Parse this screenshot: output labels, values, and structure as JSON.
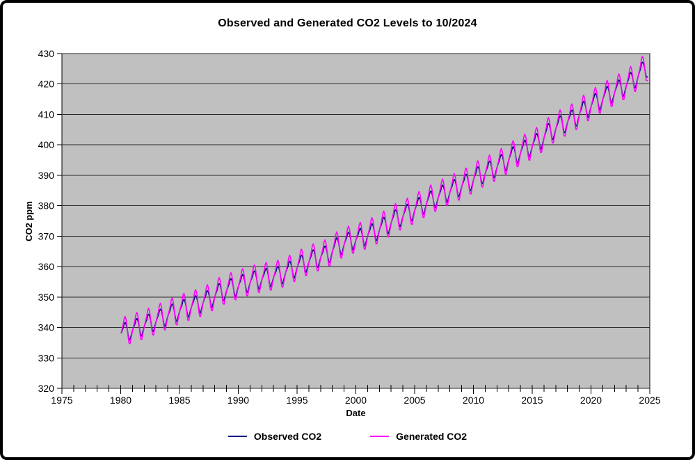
{
  "chart_data": {
    "type": "line",
    "title": "Observed and Generated CO2 Levels to 10/2024",
    "xlabel": "Date",
    "ylabel": "CO2 ppm",
    "xlim": [
      1975,
      2025
    ],
    "ylim": [
      320,
      430
    ],
    "x_major_ticks": [
      1975,
      1980,
      1985,
      1990,
      1995,
      2000,
      2005,
      2010,
      2015,
      2020,
      2025
    ],
    "x_minor_tick_step_years": 1,
    "y_ticks": [
      320,
      330,
      340,
      350,
      360,
      370,
      380,
      390,
      400,
      410,
      420,
      430
    ],
    "grid": "horizontal",
    "plot_background": "#c0c0c0",
    "gridline_color": "#2a2a2a",
    "axis_color": "#000000",
    "legend_position": "bottom-center",
    "sampling": "monthly",
    "data_start": "1980-01",
    "data_end": "2024-10",
    "series": [
      {
        "name": "Observed CO2",
        "color": "#000080",
        "years": [
          1980,
          1981,
          1982,
          1983,
          1984,
          1985,
          1986,
          1987,
          1988,
          1989,
          1990,
          1991,
          1992,
          1993,
          1994,
          1995,
          1996,
          1997,
          1998,
          1999,
          2000,
          2001,
          2002,
          2003,
          2004,
          2005,
          2006,
          2007,
          2008,
          2009,
          2010,
          2011,
          2012,
          2013,
          2014,
          2015,
          2016,
          2017,
          2018,
          2019,
          2020,
          2021,
          2022,
          2023,
          2024
        ],
        "annual_means": [
          338.8,
          340.1,
          341.5,
          343.2,
          344.9,
          346.4,
          347.6,
          349.3,
          351.7,
          353.2,
          354.5,
          355.7,
          356.5,
          357.2,
          359.0,
          361.0,
          362.7,
          363.9,
          366.8,
          368.5,
          369.7,
          371.3,
          373.5,
          376.0,
          377.7,
          380.0,
          382.1,
          384.0,
          385.8,
          387.6,
          390.1,
          391.9,
          394.1,
          396.7,
          398.8,
          401.0,
          404.4,
          406.8,
          408.7,
          411.7,
          414.2,
          416.5,
          418.6,
          421.1,
          424.6
        ],
        "monthly_seasonal_offsets": [
          0.0,
          0.7,
          1.4,
          2.6,
          3.0,
          2.4,
          0.8,
          -1.3,
          -3.1,
          -3.3,
          -2.1,
          -1.0
        ]
      },
      {
        "name": "Generated CO2",
        "color": "#ff00ff",
        "years": [
          1980,
          1981,
          1982,
          1983,
          1984,
          1985,
          1986,
          1987,
          1988,
          1989,
          1990,
          1991,
          1992,
          1993,
          1994,
          1995,
          1996,
          1997,
          1998,
          1999,
          2000,
          2001,
          2002,
          2003,
          2004,
          2005,
          2006,
          2007,
          2008,
          2009,
          2010,
          2011,
          2012,
          2013,
          2014,
          2015,
          2016,
          2017,
          2018,
          2019,
          2020,
          2021,
          2022,
          2023,
          2024
        ],
        "annual_means": [
          338.8,
          340.1,
          341.5,
          343.2,
          344.9,
          346.4,
          347.6,
          349.3,
          351.7,
          353.2,
          354.5,
          355.7,
          356.5,
          357.2,
          359.0,
          361.0,
          362.7,
          363.9,
          366.8,
          368.5,
          369.7,
          371.3,
          373.5,
          376.0,
          377.7,
          380.0,
          382.1,
          384.0,
          385.8,
          387.6,
          390.1,
          391.9,
          394.1,
          396.7,
          398.8,
          401.0,
          404.4,
          406.8,
          408.7,
          411.7,
          414.2,
          416.5,
          418.6,
          421.1,
          424.6
        ],
        "monthly_seasonal_offsets": [
          0.1,
          1.2,
          2.5,
          4.3,
          5.0,
          3.9,
          1.2,
          -1.9,
          -4.2,
          -4.5,
          -2.9,
          -1.4
        ]
      }
    ]
  }
}
